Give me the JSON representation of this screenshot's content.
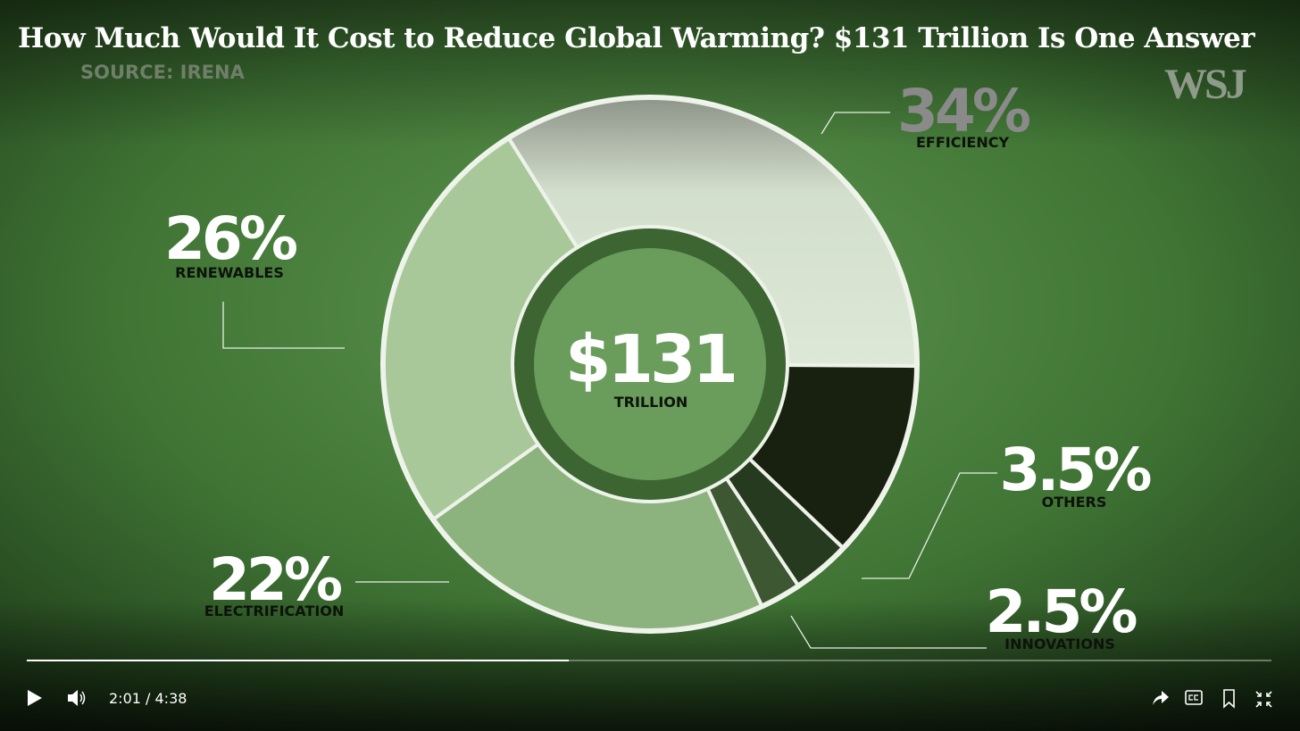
{
  "chart_data": {
    "type": "pie",
    "title": "How Much Would It Cost to Reduce Global Warming? $131 Trillion Is One Answer",
    "source": "SOURCE: IRENA",
    "categories": [
      "EFFICIENCY",
      null,
      "OTHERS",
      "INNOVATIONS",
      "ELECTRIFICATION",
      "RENEWABLES"
    ],
    "values": [
      34,
      12,
      3.5,
      2.5,
      22,
      26
    ],
    "value_labels": [
      "34%",
      null,
      "3.5%",
      "2.5%",
      "22%",
      "26%"
    ],
    "colors": [
      "#d6e4cf",
      "#18200f",
      "#263a1f",
      "#3c5731",
      "#8cb37d",
      "#a8c89a"
    ],
    "center_label": "$131",
    "center_sublabel": "TRILLION"
  },
  "brand": "WSJ",
  "player": {
    "time": "2:01 / 4:38"
  }
}
